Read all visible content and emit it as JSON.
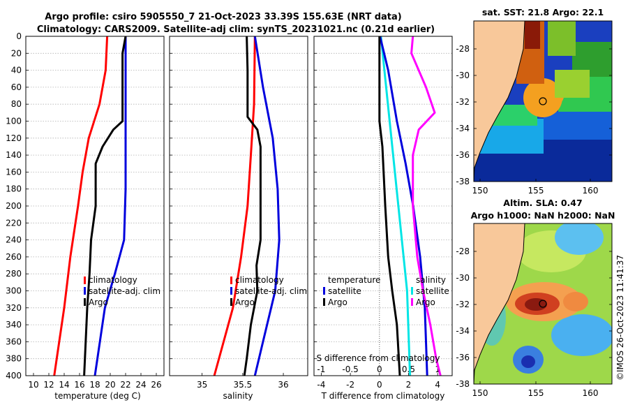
{
  "header": {
    "title_line1": "Argo profile: csiro 5905550_7 21-Oct-2023 33.39S 155.63E (NRT data)",
    "title_line2": "Climatology: CARS2009. Satellite-adj clim: synTS_20231021.nc (0.21d earlier)"
  },
  "colors": {
    "climatology": "#ff0000",
    "satellite": "#0000dd",
    "argo": "#000000",
    "t_diff": "#00e5e5",
    "s_diff": "#ff00ff",
    "land": "#f8c89a"
  },
  "chart_data": [
    {
      "type": "line",
      "name": "temperature",
      "xlabel": "temperature (deg C)",
      "xlim": [
        9,
        27
      ],
      "xticks": [
        10,
        12,
        14,
        16,
        18,
        20,
        22,
        24,
        26
      ],
      "ylim": [
        0,
        400
      ],
      "yticks": [
        0,
        20,
        40,
        60,
        80,
        100,
        120,
        140,
        160,
        180,
        200,
        220,
        240,
        260,
        280,
        300,
        320,
        340,
        360,
        380,
        400
      ],
      "legend": [
        "climatology",
        "satellite-adj. clim",
        "Argo"
      ],
      "series": [
        {
          "name": "climatology",
          "depth": [
            0,
            40,
            80,
            120,
            160,
            200,
            260,
            320,
            400
          ],
          "values": [
            19.6,
            19.4,
            18.6,
            17.2,
            16.4,
            15.8,
            14.8,
            14.0,
            12.7
          ]
        },
        {
          "name": "satellite-adj. clim",
          "depth": [
            0,
            100,
            180,
            240,
            280,
            320,
            400
          ],
          "values": [
            22.0,
            22.0,
            22.0,
            21.8,
            20.6,
            19.3,
            18.0
          ]
        },
        {
          "name": "Argo",
          "depth": [
            0,
            20,
            100,
            110,
            130,
            150,
            200,
            240,
            280,
            320,
            360,
            400
          ],
          "values": [
            22.0,
            21.6,
            21.6,
            20.4,
            19.0,
            18.1,
            18.1,
            17.5,
            17.3,
            17.0,
            16.8,
            16.6
          ]
        }
      ]
    },
    {
      "type": "line",
      "name": "salinity",
      "xlabel": "salinity",
      "xlim": [
        34.6,
        36.3
      ],
      "xticks": [
        35,
        35.5,
        36
      ],
      "ylim": [
        0,
        400
      ],
      "legend": [
        "climatology",
        "satellite-adj. clim",
        "Argo"
      ],
      "series": [
        {
          "name": "climatology",
          "depth": [
            0,
            80,
            140,
            200,
            260,
            320,
            400
          ],
          "values": [
            35.65,
            35.64,
            35.6,
            35.56,
            35.48,
            35.38,
            35.15
          ]
        },
        {
          "name": "satellite-adj. clim",
          "depth": [
            0,
            60,
            120,
            180,
            240,
            300,
            360,
            400
          ],
          "values": [
            35.65,
            35.75,
            35.87,
            35.93,
            35.95,
            35.9,
            35.75,
            35.65
          ]
        },
        {
          "name": "Argo",
          "depth": [
            0,
            40,
            95,
            110,
            130,
            180,
            240,
            270,
            300,
            340,
            380,
            400
          ],
          "values": [
            35.55,
            35.56,
            35.56,
            35.68,
            35.72,
            35.72,
            35.72,
            35.67,
            35.68,
            35.6,
            35.55,
            35.52
          ]
        }
      ]
    },
    {
      "type": "line",
      "name": "difference",
      "xlabel": "T difference from climatology",
      "xlabel_top": "S difference from climatology",
      "xlim": [
        -4.5,
        5
      ],
      "xticks": [
        -4,
        -2,
        0,
        2,
        4
      ],
      "xlim_top": [
        -1.125,
        1.25
      ],
      "xticks_top": [
        -1,
        -0.5,
        0,
        0.5,
        1
      ],
      "ylim": [
        0,
        400
      ],
      "legend_temperature": {
        "heading": "temperature",
        "entries": [
          "satellite",
          "Argo"
        ]
      },
      "legend_salinity": {
        "heading": "salinity",
        "entries": [
          "satellite",
          "Argo"
        ]
      },
      "series": [
        {
          "name": "T satellite",
          "axis": "T",
          "depth": [
            0,
            100,
            200,
            300,
            400
          ],
          "values": [
            0.1,
            0.7,
            1.3,
            1.9,
            2.1
          ]
        },
        {
          "name": "S satellite",
          "axis": "S",
          "depth": [
            0,
            40,
            100,
            150,
            200,
            260,
            320,
            400
          ],
          "values": [
            0.01,
            0.15,
            0.3,
            0.45,
            0.58,
            0.7,
            0.78,
            0.82
          ]
        },
        {
          "name": "T Argo",
          "axis": "T",
          "depth": [
            0,
            20,
            60,
            90,
            110,
            140,
            200,
            260,
            300,
            340,
            380,
            400
          ],
          "values": [
            2.3,
            2.2,
            3.2,
            3.8,
            2.7,
            2.3,
            2.3,
            2.6,
            3.0,
            3.5,
            3.9,
            4.2
          ]
        },
        {
          "name": "S Argo",
          "axis": "S",
          "depth": [
            0,
            60,
            100,
            130,
            200,
            260,
            300,
            340,
            400
          ],
          "values": [
            0.0,
            0.0,
            0.0,
            0.05,
            0.1,
            0.15,
            0.22,
            0.3,
            0.35
          ]
        }
      ]
    }
  ],
  "maps": {
    "sst": {
      "title": "sat. SST: 21.8 Argo: 22.1"
    },
    "sla": {
      "title_line1": "Altim. SLA: 0.47",
      "title_line2": "Argo h1000: NaN h2000: NaN"
    },
    "lat_ticks": [
      "-28",
      "-30",
      "-32",
      "-34",
      "-36",
      "-38"
    ],
    "lon_ticks": [
      "150",
      "155",
      "160"
    ],
    "argo_marker": {
      "lon": 155.63,
      "lat": -33.39
    }
  },
  "credit": "©IMOS 26-Oct-2023 11:41:37"
}
